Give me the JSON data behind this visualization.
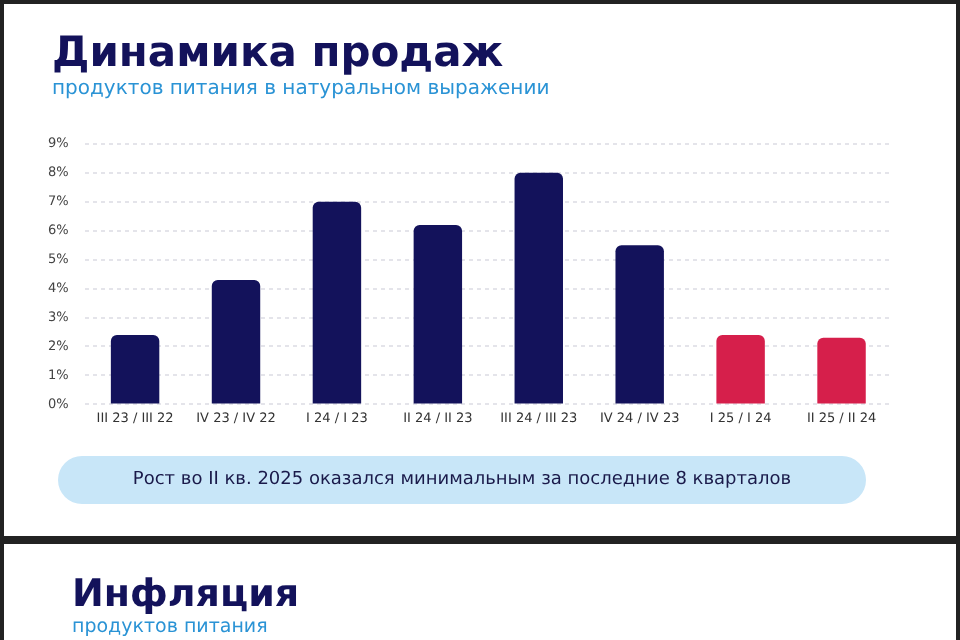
{
  "chart_data": {
    "type": "bar",
    "title": "Динамика продаж",
    "subtitle": "продуктов питания в натуральном выражении",
    "categories": [
      "III 23 / III 22",
      "IV 23 / IV 22",
      "I 24 / I 23",
      "II 24 / II 23",
      "III 24 / III 23",
      "IV 24 / IV 23",
      "I 25 / I 24",
      "II 25 / II 24"
    ],
    "values": [
      2.4,
      4.3,
      7.0,
      6.2,
      8.0,
      5.5,
      2.4,
      2.3
    ],
    "colors": [
      "#13125b",
      "#13125b",
      "#13125b",
      "#13125b",
      "#13125b",
      "#13125b",
      "#d61f4b",
      "#d61f4b"
    ],
    "ylim": [
      0,
      9
    ],
    "yticks": [
      {
        "value": 0,
        "label": "0%"
      },
      {
        "value": 1,
        "label": "1%"
      },
      {
        "value": 2,
        "label": "2%"
      },
      {
        "value": 3,
        "label": "3%"
      },
      {
        "value": 4,
        "label": "4%"
      },
      {
        "value": 5,
        "label": "5%"
      },
      {
        "value": 6,
        "label": "6%"
      },
      {
        "value": 7,
        "label": "7%"
      },
      {
        "value": 8,
        "label": "8%"
      },
      {
        "value": 9,
        "label": "9%"
      }
    ],
    "grid": "y",
    "legend": false,
    "annotations": [
      "Рост во II кв. 2025 оказался минимальным за последние 8 кварталов",
      "Инфляция",
      "продуктов питания"
    ]
  }
}
